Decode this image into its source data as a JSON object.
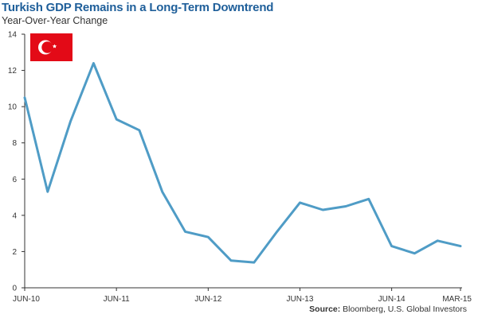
{
  "header": {
    "title": "Turkish GDP Remains in a Long-Term Downtrend",
    "subtitle": "Year-Over-Year Change"
  },
  "footer": {
    "source_label": "Source:",
    "source_text": "Bloomberg, U.S. Global Investors"
  },
  "flag": {
    "icon": "turkey-flag-icon",
    "color": "#e30a17"
  },
  "colors": {
    "line": "#4f9cc6",
    "axis": "#333333",
    "title": "#1f5f9a"
  },
  "chart_data": {
    "type": "line",
    "title": "Turkish GDP Remains in a Long-Term Downtrend",
    "subtitle": "Year-Over-Year Change",
    "xlabel": "",
    "ylabel": "",
    "ylim": [
      0,
      14
    ],
    "y_ticks": [
      0,
      2,
      4,
      6,
      8,
      10,
      12,
      14
    ],
    "x_tick_labels": [
      "JUN-10",
      "JUN-11",
      "JUN-12",
      "JUN-13",
      "JUN-14",
      "MAR-15"
    ],
    "x_tick_index": [
      0,
      4,
      8,
      12,
      16,
      19
    ],
    "grid": false,
    "legend": "none",
    "series": [
      {
        "values": [
          10.5,
          5.3,
          9.2,
          12.4,
          9.3,
          8.7,
          5.3,
          3.1,
          2.8,
          1.5,
          1.4,
          3.1,
          4.7,
          4.3,
          4.5,
          4.9,
          2.3,
          1.9,
          2.6,
          2.3
        ]
      }
    ]
  }
}
